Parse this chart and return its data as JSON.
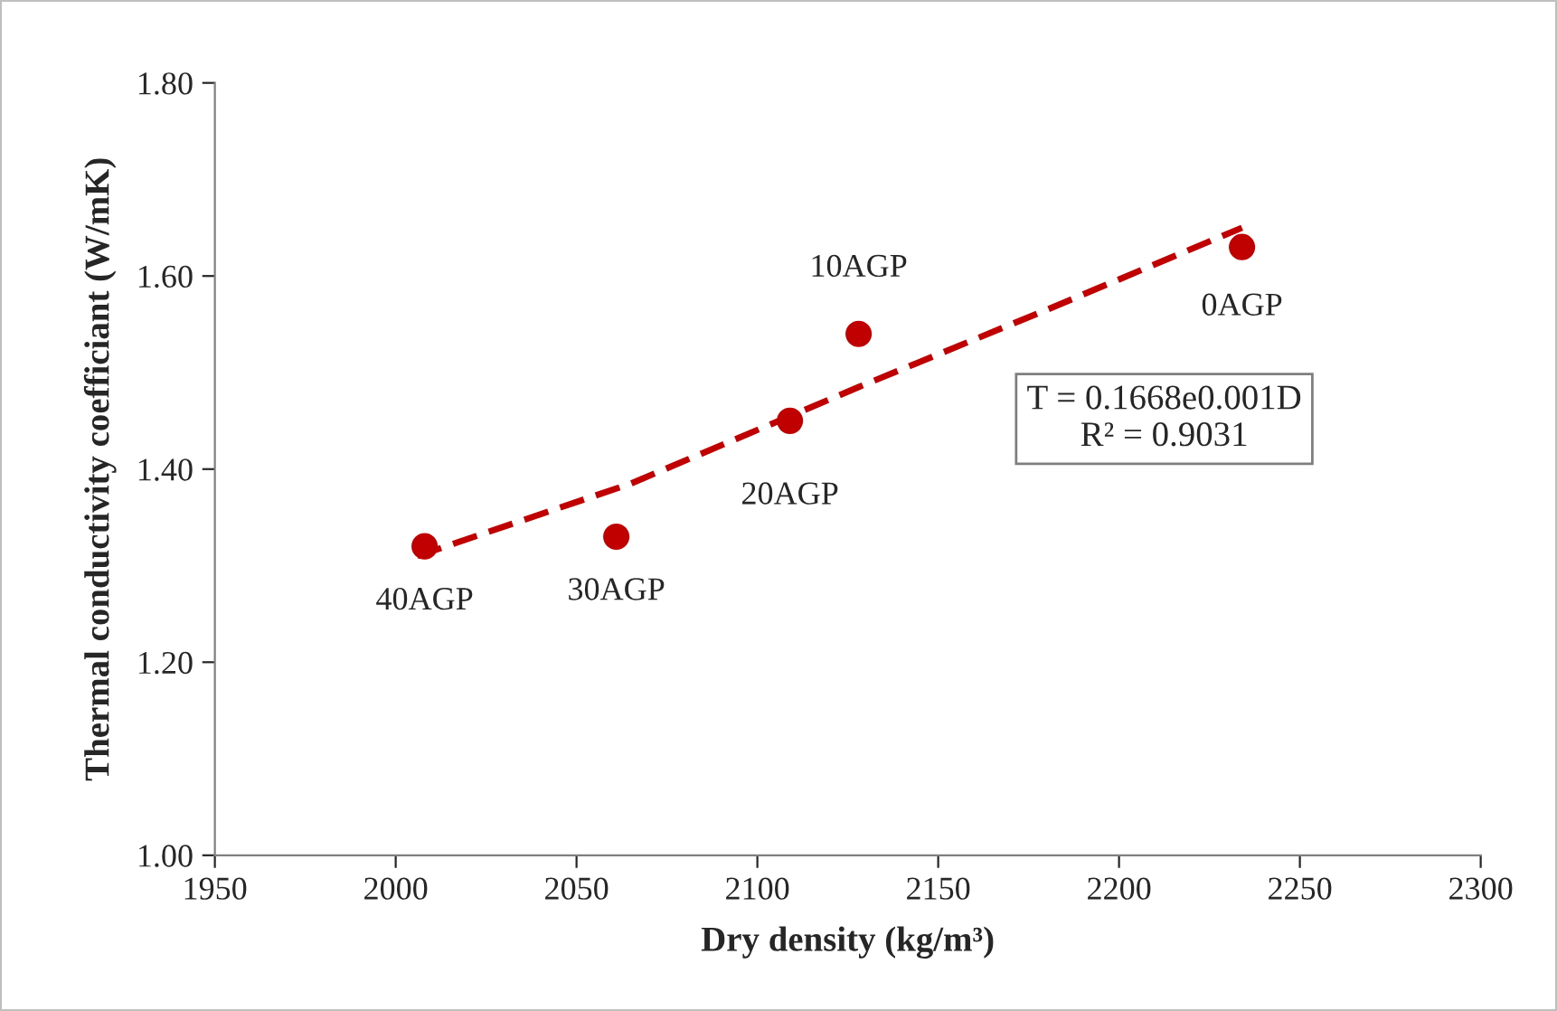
{
  "chart_data": {
    "type": "scatter",
    "xlabel": "Dry density (kg/m³)",
    "ylabel": "Thermal conductivity coefficiant (W/mK)",
    "xlim": [
      1950,
      2300
    ],
    "xticks": [
      1950,
      2000,
      2050,
      2100,
      2150,
      2200,
      2250,
      2300
    ],
    "ylim": [
      1.0,
      1.8
    ],
    "yticks": [
      {
        "value": 1.0,
        "label": "1.00"
      },
      {
        "value": 1.2,
        "label": "1.20"
      },
      {
        "value": 1.4,
        "label": "1.40"
      },
      {
        "value": 1.6,
        "label": "1.60"
      },
      {
        "value": 1.8,
        "label": "1.80"
      }
    ],
    "grid": false,
    "legend": false,
    "series": [
      {
        "color": "#c00000",
        "marker": "circle",
        "x": [
          2008,
          2061,
          2109,
          2128,
          2234
        ],
        "values": [
          1.32,
          1.33,
          1.45,
          1.54,
          1.63
        ]
      },
      {
        "type": "line",
        "color": "#c00000",
        "line_style": "dashed",
        "marker": "none",
        "x": [
          2006,
          2065,
          2128,
          2180,
          2234
        ],
        "values": [
          1.31,
          1.385,
          1.485,
          1.565,
          1.65
        ]
      }
    ],
    "annotations": [
      {
        "text": "40AGP",
        "x": 2008,
        "y": 1.32
      },
      {
        "text": "30AGP",
        "x": 2061,
        "y": 1.33
      },
      {
        "text": "20AGP",
        "x": 2109,
        "y": 1.45
      },
      {
        "text": "10AGP",
        "x": 2128,
        "y": 1.54
      },
      {
        "text": "0AGP",
        "x": 2234,
        "y": 1.63
      },
      "T = 0.1668e0.001D\nR² = 0.9031"
    ]
  }
}
